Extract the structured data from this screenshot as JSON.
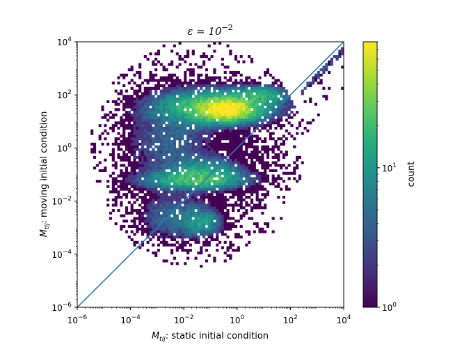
{
  "chart_data": {
    "type": "heatmap",
    "title": {
      "base": "ε = 10",
      "exp": "−2"
    },
    "xlabel": {
      "sym": "M",
      "sub": "tij",
      "text": ": static initial condition"
    },
    "ylabel": {
      "sym": "M",
      "sub": "tij",
      "text": ": moving initial condition"
    },
    "x_scale": "log",
    "y_scale": "log",
    "xlim": [
      1e-06,
      10000.0
    ],
    "ylim": [
      1e-06,
      10000.0
    ],
    "x_ticks": [
      {
        "value": 1e-06,
        "base": "10",
        "exp": "−6"
      },
      {
        "value": 0.0001,
        "base": "10",
        "exp": "−4"
      },
      {
        "value": 0.01,
        "base": "10",
        "exp": "−2"
      },
      {
        "value": 1,
        "base": "10",
        "exp": "0"
      },
      {
        "value": 100.0,
        "base": "10",
        "exp": "2"
      },
      {
        "value": 10000.0,
        "base": "10",
        "exp": "4"
      }
    ],
    "y_ticks": [
      {
        "value": 1e-06,
        "base": "10",
        "exp": "−6"
      },
      {
        "value": 0.0001,
        "base": "10",
        "exp": "−4"
      },
      {
        "value": 0.01,
        "base": "10",
        "exp": "−2"
      },
      {
        "value": 1,
        "base": "10",
        "exp": "0"
      },
      {
        "value": 100.0,
        "base": "10",
        "exp": "2"
      },
      {
        "value": 10000.0,
        "base": "10",
        "exp": "4"
      }
    ],
    "reference_line": {
      "type": "y = x",
      "color": "#2b7bba"
    },
    "grid": false,
    "colormap": "viridis",
    "colorbar": {
      "label": "count",
      "scale": "log",
      "range": [
        1,
        80
      ],
      "ticks": [
        {
          "value": 1,
          "base": "10",
          "exp": "0"
        },
        {
          "value": 10,
          "base": "10",
          "exp": "1"
        }
      ]
    },
    "density_clusters": [
      {
        "x_log": -0.4,
        "y_log": 1.45,
        "peak_count": 80,
        "x_spread": 0.55,
        "y_spread": 0.22
      },
      {
        "x_log": -0.8,
        "y_log": 1.55,
        "peak_count": 28,
        "x_spread": 1.2,
        "y_spread": 0.35
      },
      {
        "x_log": 0.9,
        "y_log": 2.0,
        "peak_count": 14,
        "x_spread": 0.6,
        "y_spread": 0.2
      },
      {
        "x_log": -1.6,
        "y_log": -1.2,
        "peak_count": 18,
        "x_spread": 1.1,
        "y_spread": 0.2
      },
      {
        "x_log": -1.2,
        "y_log": -0.9,
        "peak_count": 12,
        "x_spread": 0.8,
        "y_spread": 0.3
      },
      {
        "x_log": -2.3,
        "y_log": -2.6,
        "peak_count": 5,
        "x_spread": 0.8,
        "y_spread": 0.5
      },
      {
        "x_log": -1.3,
        "y_log": -2.8,
        "peak_count": 10,
        "x_spread": 0.4,
        "y_spread": 0.3
      },
      {
        "x_log": -2.5,
        "y_log": 0.3,
        "peak_count": 4,
        "x_spread": 1.0,
        "y_spread": 1.0
      }
    ],
    "diagonal_strip": {
      "x_log_range": [
        2.4,
        4.0
      ],
      "offset_log": -0.3,
      "peak_count": 3
    }
  }
}
